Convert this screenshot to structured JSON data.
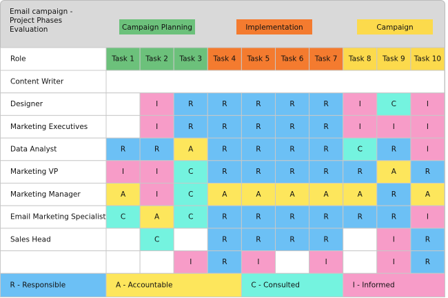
{
  "header": {
    "title": "Email campaign - Project Phases Evaluation",
    "phases": [
      {
        "label": "Campaign Planning",
        "color": "#6cc17b"
      },
      {
        "label": "Implementation",
        "color": "#f47b2f"
      },
      {
        "label": "Campaign",
        "color": "#fcda4c"
      }
    ]
  },
  "table": {
    "role_header": "Role",
    "tasks": [
      {
        "label": "Task 1",
        "color": "#6cc17b"
      },
      {
        "label": "Task 2",
        "color": "#6cc17b"
      },
      {
        "label": "Task 3",
        "color": "#6cc17b"
      },
      {
        "label": "Task 4",
        "color": "#f47b2f"
      },
      {
        "label": "Task 5",
        "color": "#f47b2f"
      },
      {
        "label": "Task 6",
        "color": "#f47b2f"
      },
      {
        "label": "Task 7",
        "color": "#f47b2f"
      },
      {
        "label": "Task 8",
        "color": "#fcda4c"
      },
      {
        "label": "Task 9",
        "color": "#fcda4c"
      },
      {
        "label": "Task 10",
        "color": "#fcda4c"
      }
    ],
    "rows": [
      {
        "role": "Content Writer",
        "cells": [
          null,
          null,
          null,
          null,
          null,
          null,
          null,
          null,
          null,
          null
        ]
      },
      {
        "role": "Designer",
        "cells": [
          null,
          "I",
          "R",
          "R",
          "R",
          "R",
          "R",
          "I",
          "C",
          "I"
        ]
      },
      {
        "role": "Marketing Executives",
        "cells": [
          null,
          "I",
          "R",
          "R",
          "R",
          "R",
          "R",
          "I",
          "I",
          "I"
        ]
      },
      {
        "role": "Data Analyst",
        "cells": [
          "R",
          "R",
          "A",
          "R",
          "R",
          "R",
          "R",
          "C",
          "R",
          "I"
        ]
      },
      {
        "role": "Marketing VP",
        "cells": [
          "I",
          "I",
          "C",
          "R",
          "R",
          "R",
          "R",
          "R",
          "A",
          "R"
        ]
      },
      {
        "role": "Marketing Manager",
        "cells": [
          "A",
          "I",
          "C",
          "A",
          "A",
          "A",
          "A",
          "A",
          "R",
          "A"
        ]
      },
      {
        "role": "Email Marketing Specialist",
        "cells": [
          "C",
          "A",
          "C",
          "R",
          "R",
          "R",
          "R",
          "R",
          "R",
          "I"
        ]
      },
      {
        "role": "Sales Head",
        "cells": [
          null,
          "C",
          null,
          "R",
          "R",
          "R",
          "R",
          null,
          "I",
          "R"
        ]
      },
      {
        "role": null,
        "cells": [
          null,
          null,
          "I",
          "R",
          "I",
          null,
          "I",
          null,
          "I",
          "R"
        ]
      }
    ]
  },
  "legend": [
    {
      "label": "R - Responsible",
      "color": "#6cc0f5"
    },
    {
      "label": "A - Accountable",
      "color": "#fde65c"
    },
    {
      "label": "C - Consulted",
      "color": "#74f3df"
    },
    {
      "label": "I - Informed",
      "color": "#f79cc8"
    }
  ]
}
